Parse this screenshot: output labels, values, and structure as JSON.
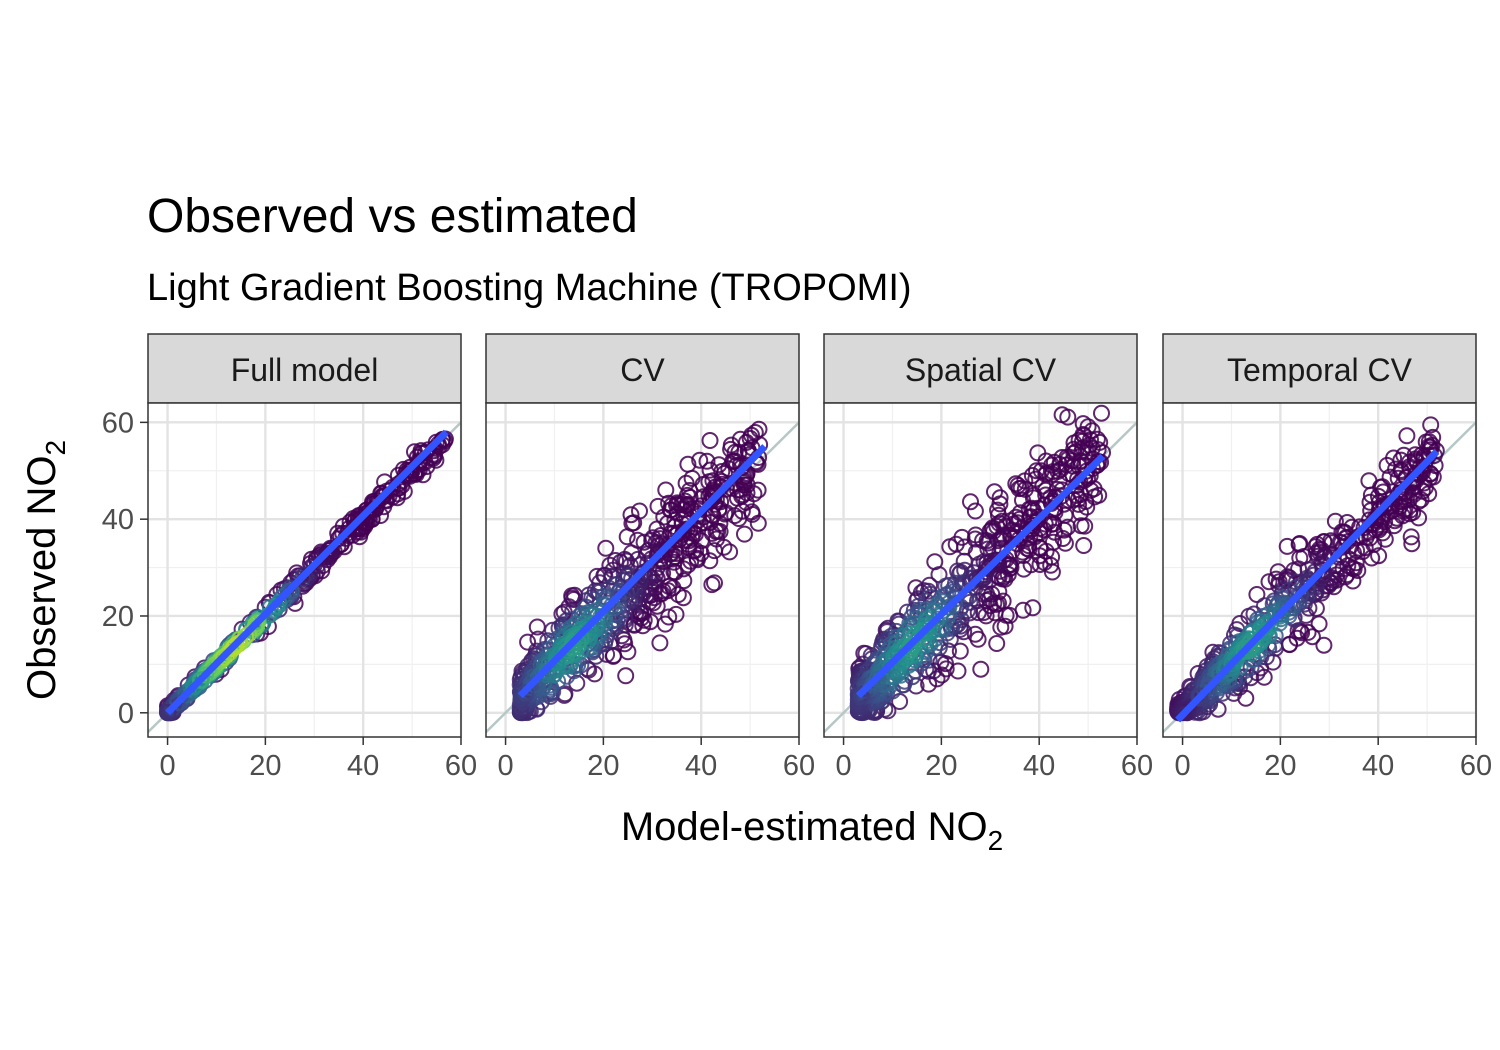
{
  "chart_data": {
    "type": "scatter",
    "title": "Observed vs estimated",
    "subtitle": "Light Gradient Boosting Machine (TROPOMI)",
    "xlabel": "Model-estimated NO",
    "xlabel_sub": "2",
    "ylabel": "Observed NO",
    "ylabel_sub": "2",
    "xlim": [
      -4,
      60
    ],
    "ylim": [
      -5,
      64
    ],
    "x_ticks": [
      0,
      20,
      40,
      60
    ],
    "y_ticks": [
      0,
      20,
      40,
      60
    ],
    "grid": true,
    "reference_line": {
      "slope": 1,
      "intercept": 0,
      "color": "#b5c8c6"
    },
    "colors": {
      "points_low": "#440154",
      "points_mid": "#21908c",
      "points_high": "#b5de2b",
      "fit_line": "#3355ff",
      "strip_fill": "#d9d9d9"
    },
    "panels": [
      {
        "name": "Full model",
        "spread": 1.2,
        "fit": {
          "x": [
            0,
            57
          ],
          "y": [
            0,
            58
          ]
        },
        "x_range": [
          0,
          57
        ]
      },
      {
        "name": "CV",
        "spread": 6.0,
        "fit": {
          "x": [
            3,
            53
          ],
          "y": [
            3.5,
            55
          ]
        },
        "x_range": [
          3,
          52
        ]
      },
      {
        "name": "Spatial CV",
        "spread": 6.5,
        "fit": {
          "x": [
            3,
            53
          ],
          "y": [
            3.5,
            53
          ]
        },
        "x_range": [
          3,
          53
        ]
      },
      {
        "name": "Temporal CV",
        "spread": 4.5,
        "fit": {
          "x": [
            -1,
            52
          ],
          "y": [
            -1.5,
            54
          ]
        },
        "x_range": [
          -1,
          52
        ]
      }
    ]
  }
}
